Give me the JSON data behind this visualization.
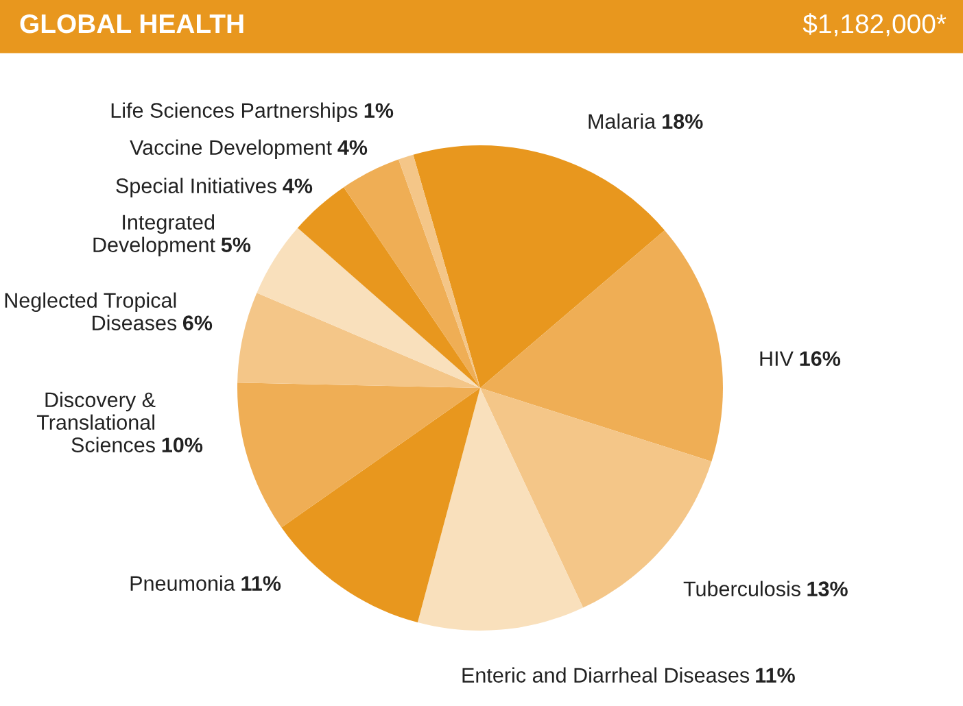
{
  "chart_data": {
    "type": "pie",
    "title": "GLOBAL HEALTH",
    "subtitle": "$1,182,000*",
    "categories": [
      "Malaria",
      "HIV",
      "Tuberculosis",
      "Enteric and Diarrheal Diseases",
      "Pneumonia",
      "Discovery &\nTranslational\nSciences",
      "Neglected Tropical\nDiseases",
      "Integrated\nDevelopment",
      "Special Initiatives",
      "Vaccine Development",
      "Life Sciences Partnerships"
    ],
    "values": [
      18,
      16,
      13,
      11,
      11,
      10,
      6,
      5,
      4,
      4,
      1
    ],
    "value_labels": [
      "18%",
      "16%",
      "13%",
      "11%",
      "11%",
      "10%",
      "6%",
      "5%",
      "4%",
      "4%",
      "1%"
    ],
    "colors": [
      "#e8971e",
      "#efae55",
      "#f4c688",
      "#f9e0bc",
      "#e8971e",
      "#efae55",
      "#f4c688",
      "#f9e0bc",
      "#e8971e",
      "#efae55",
      "#f4c688"
    ],
    "legend": false
  }
}
